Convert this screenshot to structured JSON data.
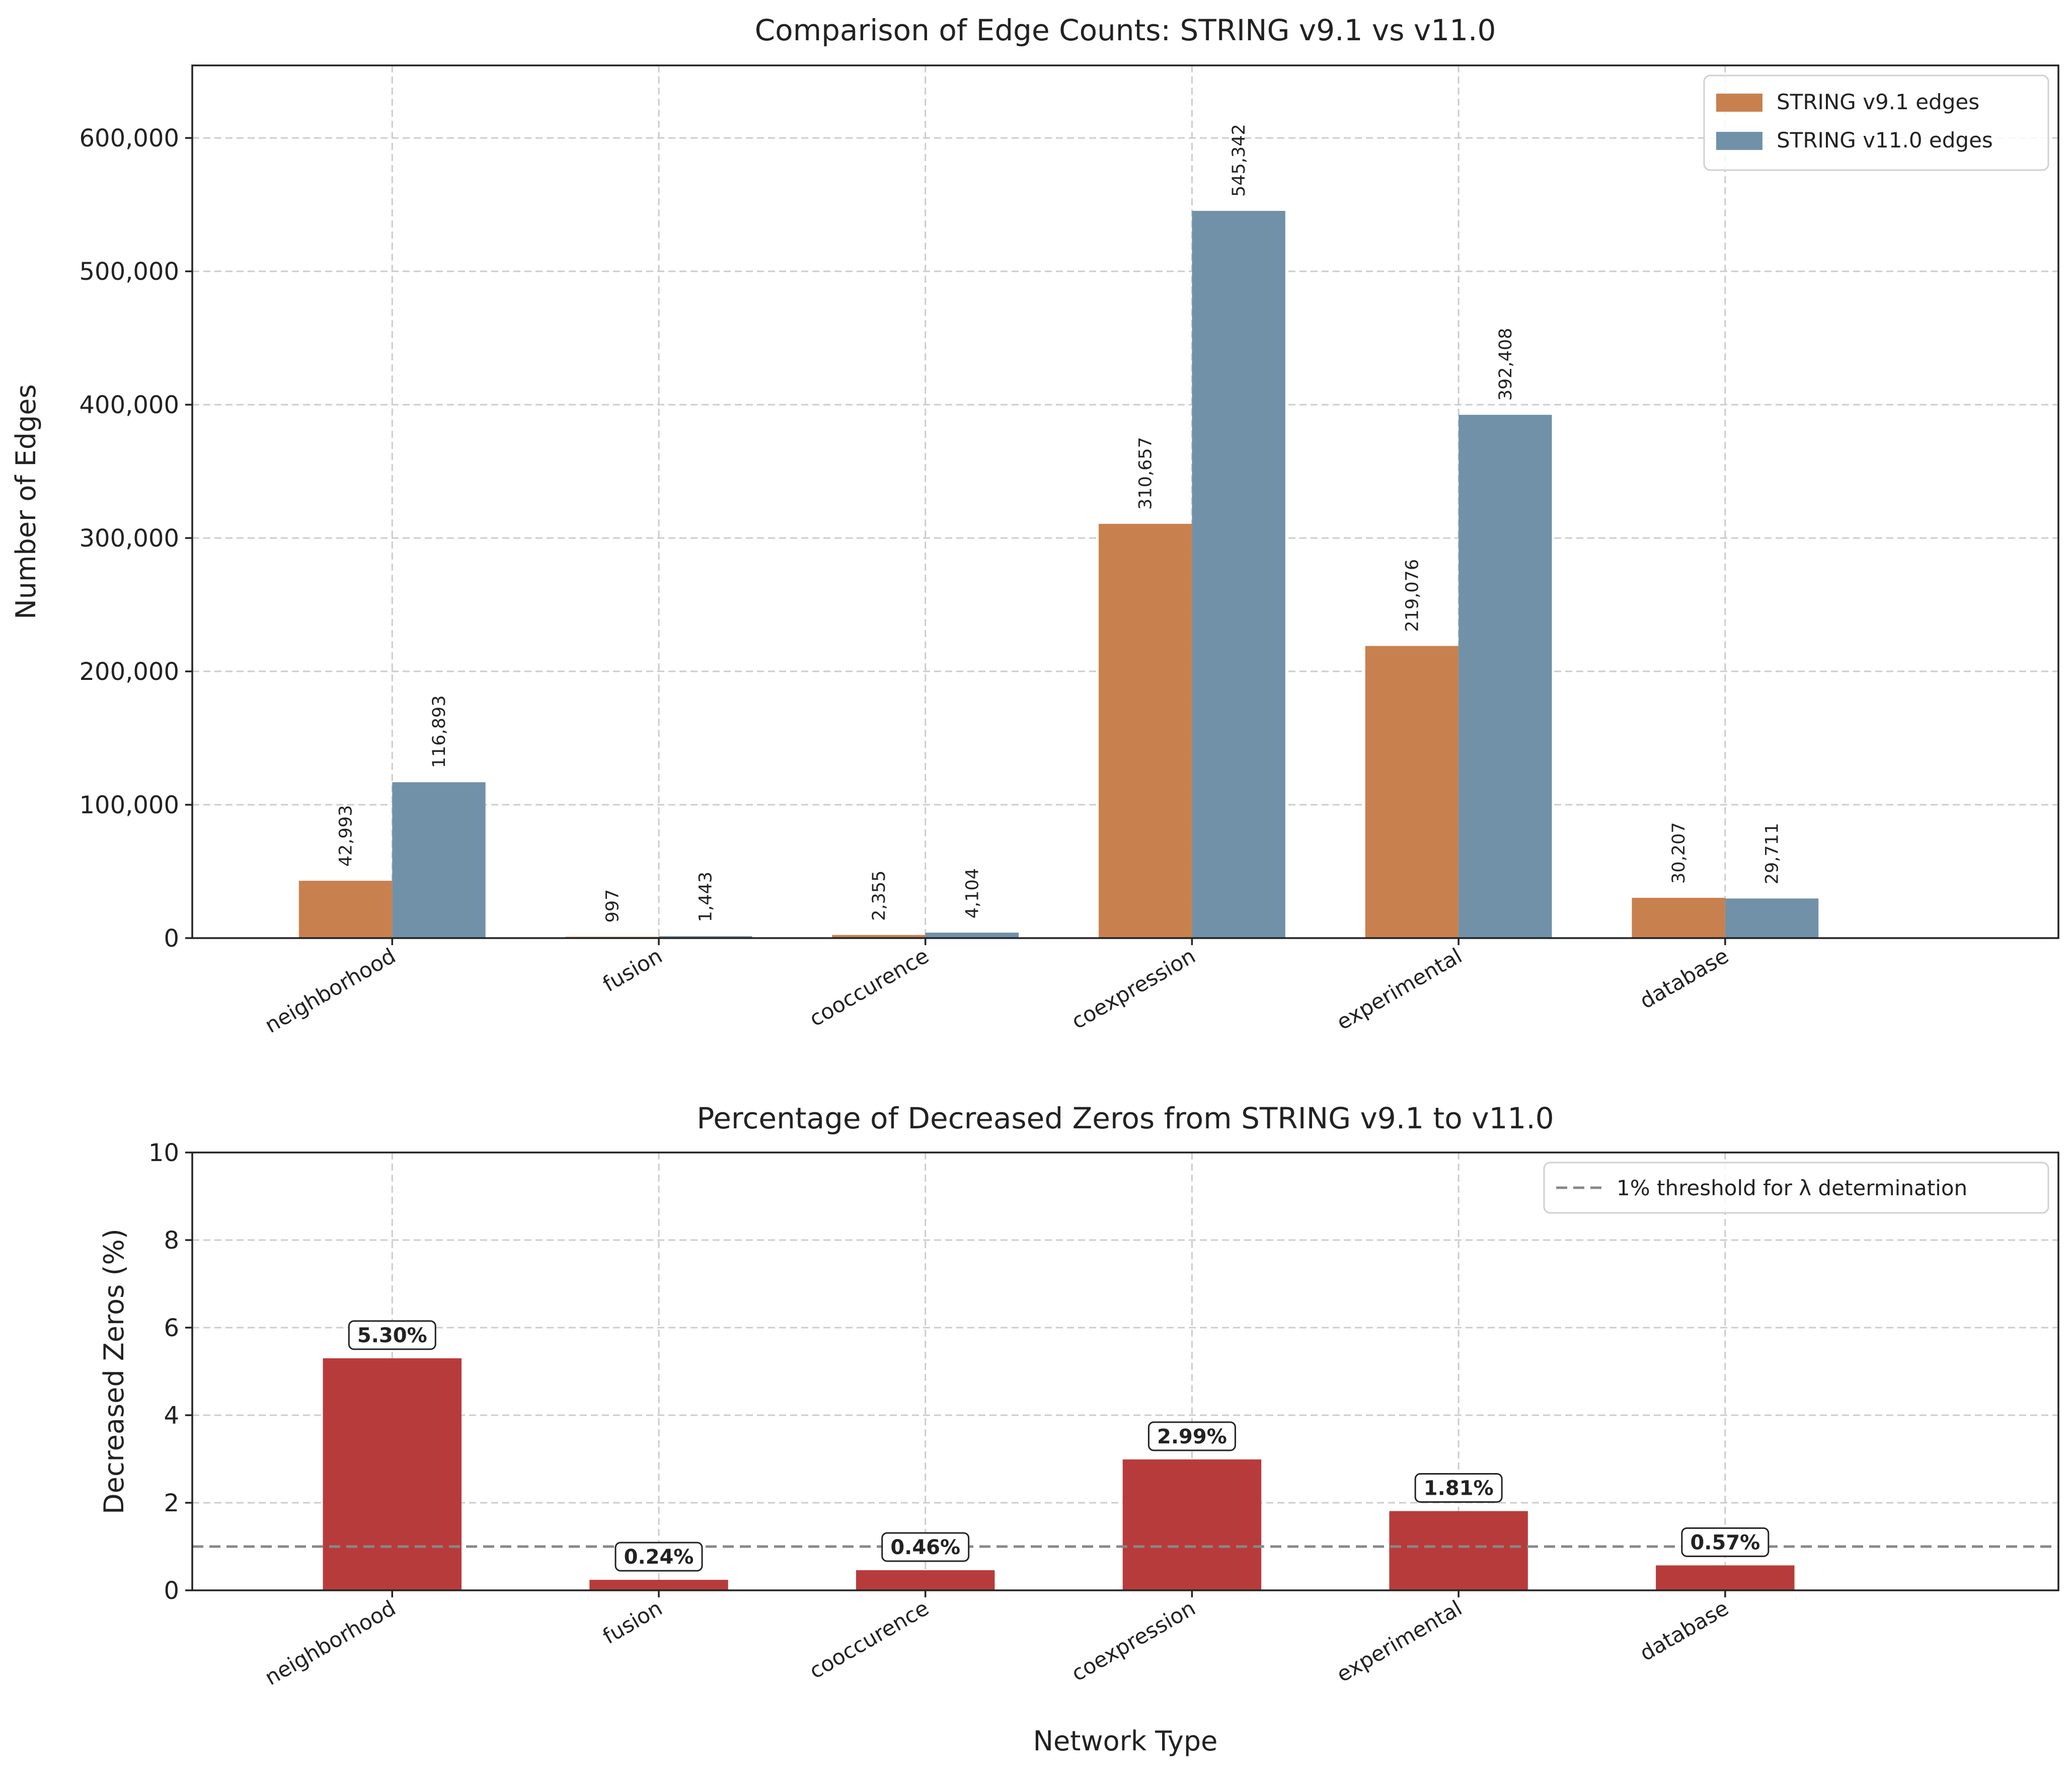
{
  "chart_data": [
    {
      "type": "bar",
      "title": "Comparison of Edge Counts: STRING v9.1 vs v11.0",
      "xlabel": "",
      "ylabel": "Number of Edges",
      "categories": [
        "neighborhood",
        "fusion",
        "cooccurence",
        "coexpression",
        "experimental",
        "database"
      ],
      "series": [
        {
          "name": "STRING v9.1 edges",
          "color": "#c8814e",
          "values": [
            42993,
            997,
            2355,
            310657,
            219076,
            30207
          ],
          "labels": [
            "42,993",
            "997",
            "2,355",
            "310,657",
            "219,076",
            "30,207"
          ]
        },
        {
          "name": "STRING v11.0 edges",
          "color": "#7191a9",
          "values": [
            116893,
            1443,
            4104,
            545342,
            392408,
            29711
          ],
          "labels": [
            "116,893",
            "1,443",
            "4,104",
            "545,342",
            "392,408",
            "29,711"
          ]
        }
      ],
      "ylim": [
        0,
        654410
      ],
      "yticks": [
        0,
        100000,
        200000,
        300000,
        400000,
        500000,
        600000
      ],
      "ytick_labels": [
        "0",
        "100,000",
        "200,000",
        "300,000",
        "400,000",
        "500,000",
        "600,000"
      ],
      "grid": true,
      "legend": "top-right"
    },
    {
      "type": "bar",
      "title": "Percentage of Decreased Zeros from STRING v9.1 to v11.0",
      "xlabel": "Network Type",
      "ylabel": "Decreased Zeros (%)",
      "categories": [
        "neighborhood",
        "fusion",
        "cooccurence",
        "coexpression",
        "experimental",
        "database"
      ],
      "series": [
        {
          "color": "#b83b3b",
          "values": [
            5.3,
            0.24,
            0.46,
            2.99,
            1.81,
            0.57
          ],
          "labels": [
            "5.30%",
            "0.24%",
            "0.46%",
            "2.99%",
            "1.81%",
            "0.57%"
          ]
        }
      ],
      "threshold": {
        "value": 1,
        "label": "1% threshold for λ determination",
        "color": "#888888",
        "style": "dashed"
      },
      "ylim": [
        0,
        10
      ],
      "yticks": [
        0,
        2,
        4,
        6,
        8,
        10
      ],
      "ytick_labels": [
        "0",
        "2",
        "4",
        "6",
        "8",
        "10"
      ],
      "grid": true,
      "legend": "top-right"
    }
  ]
}
